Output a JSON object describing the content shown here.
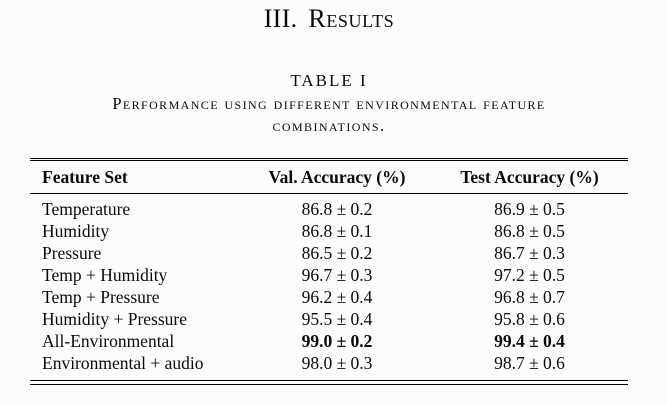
{
  "page": {
    "background": "#fcfcfc",
    "text_color": "#0a0a0a",
    "rule_color": "#000000"
  },
  "section_heading": {
    "number": "III.",
    "title": "Results"
  },
  "table_caption": {
    "label": "TABLE I",
    "line1": "Performance using different environmental feature",
    "line2": "combinations."
  },
  "table": {
    "columns": {
      "feature": "Feature Set",
      "val": "Val. Accuracy (%)",
      "test": "Test Accuracy (%)"
    },
    "rows": [
      {
        "feature": "Temperature",
        "val": "86.8 ± 0.2",
        "test": "86.9 ± 0.5",
        "bold": false
      },
      {
        "feature": "Humidity",
        "val": "86.8 ± 0.1",
        "test": "86.8 ± 0.5",
        "bold": false
      },
      {
        "feature": "Pressure",
        "val": "86.5 ± 0.2",
        "test": "86.7 ± 0.3",
        "bold": false
      },
      {
        "feature": "Temp + Humidity",
        "val": "96.7 ± 0.3",
        "test": "97.2 ± 0.5",
        "bold": false
      },
      {
        "feature": "Temp + Pressure",
        "val": "96.2 ± 0.4",
        "test": "96.8 ± 0.7",
        "bold": false
      },
      {
        "feature": "Humidity + Pressure",
        "val": "95.5 ± 0.4",
        "test": "95.8 ± 0.6",
        "bold": false
      },
      {
        "feature": "All-Environmental",
        "val": "99.0 ± 0.2",
        "test": "99.4 ± 0.4",
        "bold": true
      },
      {
        "feature": "Environmental + audio",
        "val": "98.0 ± 0.3",
        "test": "98.7 ± 0.6",
        "bold": false
      }
    ]
  }
}
